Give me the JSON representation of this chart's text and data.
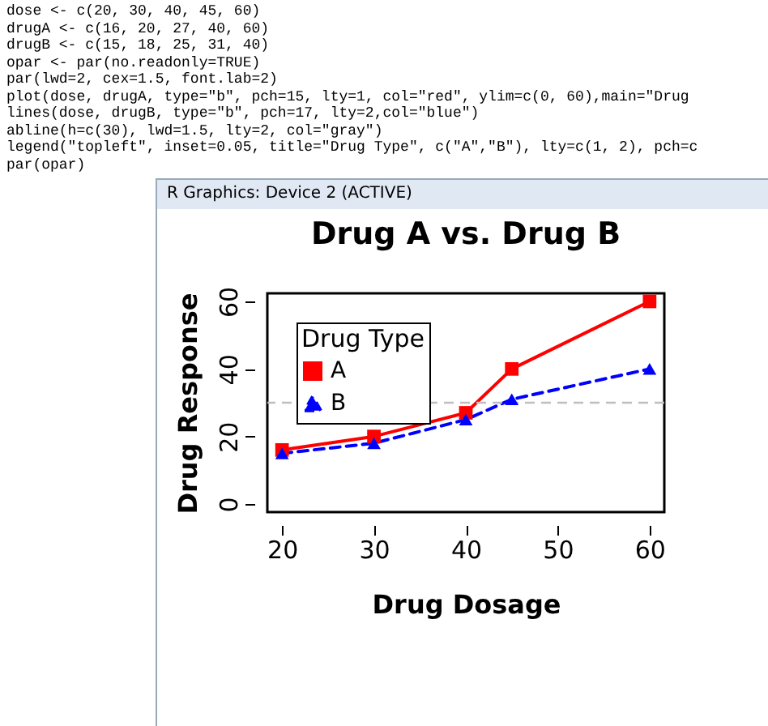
{
  "chart_data": {
    "type": "line",
    "title": "Drug A vs. Drug B",
    "xlabel": "Drug Dosage",
    "ylabel": "Drug Response",
    "legend_title": "Drug Type",
    "legend": "top left",
    "x": [
      20,
      30,
      40,
      45,
      60
    ],
    "series": [
      {
        "name": "A",
        "color": "#ff0000",
        "marker": "square",
        "line_style": "solid",
        "values": [
          16,
          20,
          27,
          40,
          60
        ]
      },
      {
        "name": "B",
        "color": "#0000ff",
        "marker": "triangle",
        "line_style": "dashed",
        "values": [
          15,
          18,
          25,
          31,
          40
        ]
      }
    ],
    "xlim": [
      18.4,
      61.6
    ],
    "xticks": [
      20,
      30,
      40,
      50,
      60
    ],
    "ylim": [
      -2.4,
      62.4
    ],
    "yticks": [
      0,
      20,
      40,
      60
    ],
    "grid": false,
    "ref_lines": [
      {
        "axis": "y",
        "value": 30,
        "color": "#bebebe",
        "line_style": "dashed"
      }
    ],
    "annotations": [
      "dose <- c(20, 30, 40, 45, 60)",
      "drugA <- c(16, 20, 27, 40, 60)",
      "drugB <- c(15, 18, 25, 31, 40)",
      "opar <- par(no.readonly=TRUE)",
      "par(lwd=2, cex=1.5, font.lab=2)",
      "plot(dose, drugA, type=\"b\", pch=15, lty=1, col=\"red\", ylim=c(0, 60),main=\"Drug",
      "lines(dose, drugB, type=\"b\", pch=17, lty=2,col=\"blue\")",
      "abline(h=c(30), lwd=1.5, lty=2, col=\"gray\")",
      "legend(\"topleft\", inset=0.05, title=\"Drug Type\", c(\"A\",\"B\"), lty=c(1, 2), pch=c",
      "par(opar)",
      "R Graphics: Device 2 (ACTIVE)"
    ]
  }
}
